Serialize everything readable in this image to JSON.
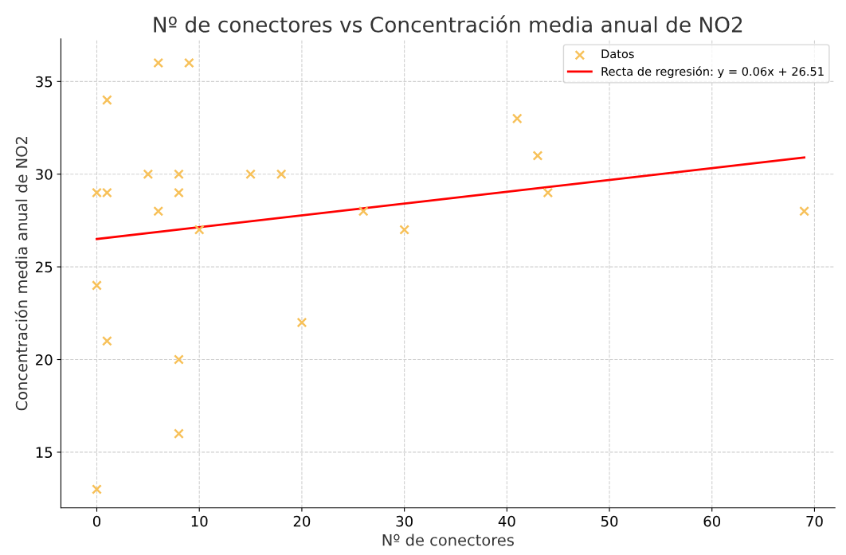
{
  "chart_data": {
    "type": "scatter",
    "title": "Nº de conectores vs Concentración media anual de NO2",
    "xlabel": "Nº de conectores",
    "ylabel": "Concentración media anual de NO2",
    "series": [
      {
        "name": "Datos",
        "color": "#f7c15a",
        "marker": "cross",
        "x": [
          0,
          0,
          0,
          1,
          1,
          1,
          5,
          6,
          6,
          8,
          8,
          8,
          8,
          9,
          10,
          15,
          18,
          20,
          26,
          30,
          41,
          43,
          44,
          69
        ],
        "values": [
          29,
          24,
          13,
          34,
          29,
          21,
          30,
          36,
          28,
          30,
          29,
          20,
          16,
          36,
          27,
          30,
          30,
          22,
          28,
          27,
          33,
          31,
          29,
          28
        ]
      },
      {
        "name": "Recta de regresión: y = 0.06x + 26.51",
        "type": "line",
        "color": "#ff0000",
        "line_style": "solid",
        "x": [
          0,
          69
        ],
        "values": [
          26.5,
          30.9
        ]
      }
    ],
    "xlim": [
      -3.5,
      72
    ],
    "ylim": [
      12,
      37.3
    ],
    "xticks": [
      0,
      10,
      20,
      30,
      40,
      50,
      60,
      70
    ],
    "yticks": [
      15,
      20,
      25,
      30,
      35
    ],
    "grid": true,
    "legend": "top right"
  }
}
